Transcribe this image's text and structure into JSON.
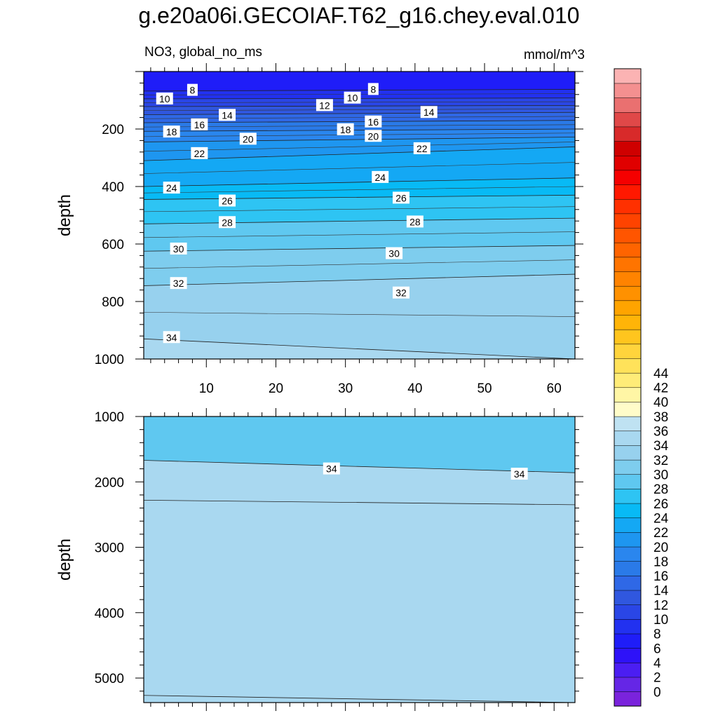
{
  "title": "g.e20a06i.GECOIAF.T62_g16.chey.eval.010",
  "subtitle_left": "NO3, global_no_ms",
  "units": "mmol/m^3",
  "colorbar": {
    "levels": [
      0,
      2,
      4,
      6,
      8,
      10,
      12,
      14,
      16,
      18,
      20,
      22,
      24,
      26,
      28,
      30,
      32,
      34,
      36,
      38,
      40,
      42,
      44
    ],
    "labels": [
      "0",
      "2",
      "4",
      "6",
      "8",
      "10",
      "12",
      "14",
      "16",
      "18",
      "20",
      "22",
      "24",
      "26",
      "28",
      "30",
      "32",
      "34",
      "36",
      "38",
      "40",
      "42",
      "44"
    ],
    "colors": [
      "#7a23dc",
      "#6526e6",
      "#4b1ef2",
      "#2e12f8",
      "#1f1df8",
      "#2231f0",
      "#2a46e6",
      "#3057df",
      "#2f68e6",
      "#2a7ae8",
      "#2a86ee",
      "#1e96f0",
      "#14a8f4",
      "#08baf5",
      "#2ec4f3",
      "#5fc8f0",
      "#7ecdee",
      "#97d1ee",
      "#a9d8f0",
      "#bfe2f2",
      "#fffcc9",
      "#fff6a5",
      "#ffec78",
      "#ffe25a",
      "#ffd43c",
      "#ffc51e",
      "#ffb408",
      "#ffa400",
      "#ff9100",
      "#ff8300",
      "#ff7400",
      "#ff6400",
      "#ff5500",
      "#ff4300",
      "#ff3000",
      "#ff1800",
      "#f50000",
      "#e00000",
      "#cf0000",
      "#d82a2a",
      "#e04848",
      "#ea7070",
      "#f49090",
      "#fbb3b3"
    ]
  },
  "chart_data": [
    {
      "type": "contour",
      "panel": "upper",
      "title": "NO3, global_no_ms",
      "units": "mmol/m^3",
      "xlabel": "",
      "ylabel": "depth",
      "xlim": [
        1,
        63
      ],
      "ylim": [
        0,
        1000
      ],
      "y_inverted": true,
      "xticks": [
        10,
        20,
        30,
        40,
        50,
        60
      ],
      "yticks": [
        200,
        400,
        600,
        800,
        1000
      ],
      "contours": [
        {
          "value": 8,
          "y_left": 68,
          "y_right": 62
        },
        {
          "value": 10,
          "y_left": 95,
          "y_right": 92
        },
        {
          "value": 12,
          "y_left": 122,
          "y_right": 118
        },
        {
          "value": 14,
          "y_left": 150,
          "y_right": 142
        },
        {
          "value": 16,
          "y_left": 178,
          "y_right": 170
        },
        {
          "value": 18,
          "y_left": 208,
          "y_right": 200
        },
        {
          "value": 20,
          "y_left": 245,
          "y_right": 228
        },
        {
          "value": 22,
          "y_left": 310,
          "y_right": 262
        },
        {
          "value": 24,
          "y_left": 400,
          "y_right": 370
        },
        {
          "value": 26,
          "y_left": 445,
          "y_right": 430
        },
        {
          "value": 28,
          "y_left": 530,
          "y_right": 510
        },
        {
          "value": 30,
          "y_left": 625,
          "y_right": 605
        },
        {
          "value": 32,
          "y_left": 745,
          "y_right": 705
        },
        {
          "value": 34,
          "y_left": 930,
          "y_right": 1000
        }
      ],
      "labels": [
        {
          "text": "8",
          "x": 8,
          "y": 65
        },
        {
          "text": "8",
          "x": 34,
          "y": 62
        },
        {
          "text": "10",
          "x": 4,
          "y": 95
        },
        {
          "text": "10",
          "x": 31,
          "y": 92
        },
        {
          "text": "12",
          "x": 27,
          "y": 118
        },
        {
          "text": "14",
          "x": 13,
          "y": 152
        },
        {
          "text": "14",
          "x": 42,
          "y": 142
        },
        {
          "text": "16",
          "x": 9,
          "y": 185
        },
        {
          "text": "16",
          "x": 34,
          "y": 175
        },
        {
          "text": "18",
          "x": 5,
          "y": 210
        },
        {
          "text": "18",
          "x": 30,
          "y": 202
        },
        {
          "text": "20",
          "x": 16,
          "y": 235
        },
        {
          "text": "20",
          "x": 34,
          "y": 225
        },
        {
          "text": "22",
          "x": 9,
          "y": 285
        },
        {
          "text": "22",
          "x": 41,
          "y": 268
        },
        {
          "text": "24",
          "x": 5,
          "y": 405
        },
        {
          "text": "24",
          "x": 35,
          "y": 368
        },
        {
          "text": "26",
          "x": 13,
          "y": 450
        },
        {
          "text": "26",
          "x": 38,
          "y": 440
        },
        {
          "text": "28",
          "x": 13,
          "y": 525
        },
        {
          "text": "28",
          "x": 40,
          "y": 523
        },
        {
          "text": "30",
          "x": 6,
          "y": 617
        },
        {
          "text": "30",
          "x": 37,
          "y": 633
        },
        {
          "text": "32",
          "x": 6,
          "y": 737
        },
        {
          "text": "32",
          "x": 38,
          "y": 770
        },
        {
          "text": "34",
          "x": 5,
          "y": 925
        }
      ]
    },
    {
      "type": "contour",
      "panel": "lower",
      "title": "",
      "xlabel": "",
      "ylabel": "depth",
      "xlim": [
        1,
        63
      ],
      "ylim": [
        1000,
        5375
      ],
      "y_inverted": true,
      "yticks": [
        1000,
        2000,
        3000,
        4000,
        5000
      ],
      "contours": [
        {
          "value": 34,
          "y_left": 1670,
          "y_right": 1860
        },
        {
          "value": 32,
          "y_left": 2280,
          "y_right": 2350
        },
        {
          "value": 30,
          "y_left": 5265,
          "y_right": 5375
        }
      ],
      "labels": [
        {
          "text": "34",
          "x": 28,
          "y": 1800
        },
        {
          "text": "34",
          "x": 55,
          "y": 1880
        }
      ]
    }
  ]
}
